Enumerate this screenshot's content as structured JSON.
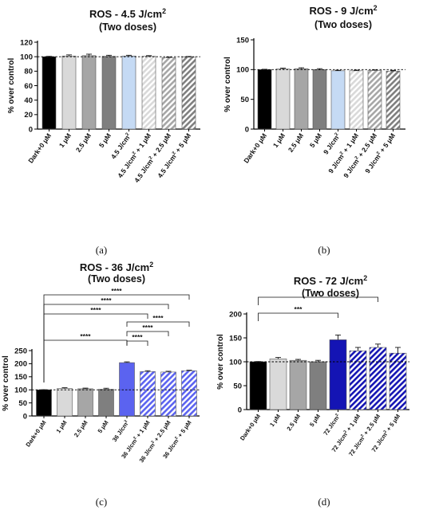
{
  "colors": {
    "black": "#000000",
    "light_gray": "#d9d9d9",
    "mid_gray": "#a6a6a6",
    "dark_gray": "#7f7f7f",
    "light_blue": "#c5daf4",
    "blue_36": "#5b63f0",
    "blue_72": "#1414b4",
    "axis": "#000000"
  },
  "chart_data": [
    {
      "type": "bar",
      "panel_label": "(a)",
      "title": "ROS - 4.5 J/cm",
      "title_sup": "2",
      "subtitle": "(Two doses)",
      "ylabel": "% over control",
      "ylim": [
        0,
        120
      ],
      "yticks": [
        0,
        20,
        40,
        60,
        80,
        100,
        120
      ],
      "reference_line": 100,
      "categories": [
        {
          "label": "Dark+0 μM"
        },
        {
          "label": "1 μM"
        },
        {
          "label": "2.5 μM"
        },
        {
          "label": "5 μM"
        },
        {
          "label": "4.5 J/cm",
          "sup": "2"
        },
        {
          "label": "4.5 J/cm",
          "sup": "2",
          "suffix": " + 1 μM"
        },
        {
          "label": "4.5 J/cm",
          "sup": "2",
          "suffix": " + 2.5 μM"
        },
        {
          "label": "4.5 J/cm",
          "sup": "2",
          "suffix": " + 5 μM"
        }
      ],
      "values": [
        100,
        101,
        101.5,
        100.5,
        101,
        100.5,
        98.5,
        99.5
      ],
      "errors": [
        0.5,
        1.5,
        2,
        1.5,
        1,
        1,
        1,
        0.8
      ],
      "fills": [
        "black",
        "light_gray",
        "mid_gray",
        "dark_gray",
        "light_blue",
        "light_gray",
        "mid_gray",
        "dark_gray"
      ],
      "hatched": [
        false,
        false,
        false,
        false,
        false,
        true,
        true,
        true
      ],
      "significance": []
    },
    {
      "type": "bar",
      "panel_label": "(b)",
      "title": "ROS - 9 J/cm",
      "title_sup": "2",
      "subtitle": "(Two doses)",
      "ylabel": "% over control",
      "ylim": [
        0,
        150
      ],
      "yticks": [
        0,
        50,
        100,
        150
      ],
      "reference_line": 100,
      "categories": [
        {
          "label": "Dark+0 μM"
        },
        {
          "label": "1 μM"
        },
        {
          "label": "2.5 μM"
        },
        {
          "label": "5 μM"
        },
        {
          "label": "9 J/cm",
          "sup": "2"
        },
        {
          "label": "9 J/cm",
          "sup": "2",
          "suffix": " + 1 μM"
        },
        {
          "label": "9 J/cm",
          "sup": "2",
          "suffix": " + 2.5 μM"
        },
        {
          "label": "9 J/cm",
          "sup": "2",
          "suffix": " + 5 μM"
        }
      ],
      "values": [
        100,
        101,
        101.5,
        100,
        98,
        98,
        98.5,
        97.5
      ],
      "errors": [
        0.5,
        1.5,
        1.5,
        1.5,
        0.8,
        1,
        1,
        1
      ],
      "fills": [
        "black",
        "light_gray",
        "mid_gray",
        "dark_gray",
        "light_blue",
        "light_gray",
        "mid_gray",
        "dark_gray"
      ],
      "hatched": [
        false,
        false,
        false,
        false,
        false,
        true,
        true,
        true
      ],
      "significance": []
    },
    {
      "type": "bar",
      "panel_label": "(c)",
      "title": "ROS - 36 J/cm",
      "title_sup": "2",
      "subtitle": "(Two doses)",
      "ylabel": "% over control",
      "ylim": [
        0,
        250
      ],
      "yticks": [
        0,
        50,
        100,
        150,
        200,
        250
      ],
      "reference_line": 100,
      "categories": [
        {
          "label": "Dark+0 μM"
        },
        {
          "label": "1 μM"
        },
        {
          "label": "2.5 μM"
        },
        {
          "label": "5 μM"
        },
        {
          "label": "36 J/cm",
          "sup": "2"
        },
        {
          "label": "36 J/cm",
          "sup": "2",
          "suffix": " + 1 μM"
        },
        {
          "label": "36 J/cm",
          "sup": "2",
          "suffix": " + 2.5 μM"
        },
        {
          "label": "36 J/cm",
          "sup": "2",
          "suffix": " + 5 μM"
        }
      ],
      "values": [
        100,
        105,
        104,
        102,
        204,
        170,
        168,
        173
      ],
      "errors": [
        0.5,
        3,
        2.5,
        4,
        3,
        3,
        3,
        2
      ],
      "fills": [
        "black",
        "light_gray",
        "mid_gray",
        "dark_gray",
        "blue_36",
        "blue_36",
        "blue_36",
        "blue_36"
      ],
      "hatched": [
        false,
        false,
        false,
        false,
        false,
        true,
        true,
        true
      ],
      "significance": [
        {
          "from": 0,
          "to": 7,
          "label": "****"
        },
        {
          "from": 0,
          "to": 6,
          "label": "****"
        },
        {
          "from": 0,
          "to": 5,
          "label": "****"
        },
        {
          "from": 4,
          "to": 7,
          "label": "****"
        },
        {
          "from": 4,
          "to": 6,
          "label": "****"
        },
        {
          "from": 4,
          "to": 5,
          "label": "****"
        },
        {
          "from": 0,
          "to": 4,
          "label": "****"
        }
      ]
    },
    {
      "type": "bar",
      "panel_label": "(d)",
      "title": "ROS - 72 J/cm",
      "title_sup": "2",
      "subtitle": "(Two doses)",
      "ylabel": "% over control",
      "ylim": [
        0,
        200
      ],
      "yticks": [
        0,
        50,
        100,
        150,
        200
      ],
      "reference_line": 100,
      "categories": [
        {
          "label": "Dark+0 μM"
        },
        {
          "label": "1 μM"
        },
        {
          "label": "2.5 μM"
        },
        {
          "label": "5 μM"
        },
        {
          "label": "72 J/cm",
          "sup": "2"
        },
        {
          "label": "72 J/cm",
          "sup": "2",
          "suffix": " + 1 μM"
        },
        {
          "label": "72 J/cm",
          "sup": "2",
          "suffix": " + 2.5 μM"
        },
        {
          "label": "72 J/cm",
          "sup": "2",
          "suffix": " + 5 μM"
        }
      ],
      "values": [
        100,
        106,
        103,
        100,
        146,
        123,
        130,
        118
      ],
      "errors": [
        0.5,
        3,
        2,
        3,
        10,
        7,
        7,
        12
      ],
      "fills": [
        "black",
        "light_gray",
        "mid_gray",
        "dark_gray",
        "blue_72",
        "blue_72",
        "blue_72",
        "blue_72"
      ],
      "hatched": [
        false,
        false,
        false,
        false,
        false,
        true,
        true,
        true
      ],
      "significance": [
        {
          "from": 0,
          "to": 6,
          "label": "*"
        },
        {
          "from": 0,
          "to": 4,
          "label": "***"
        }
      ]
    }
  ]
}
